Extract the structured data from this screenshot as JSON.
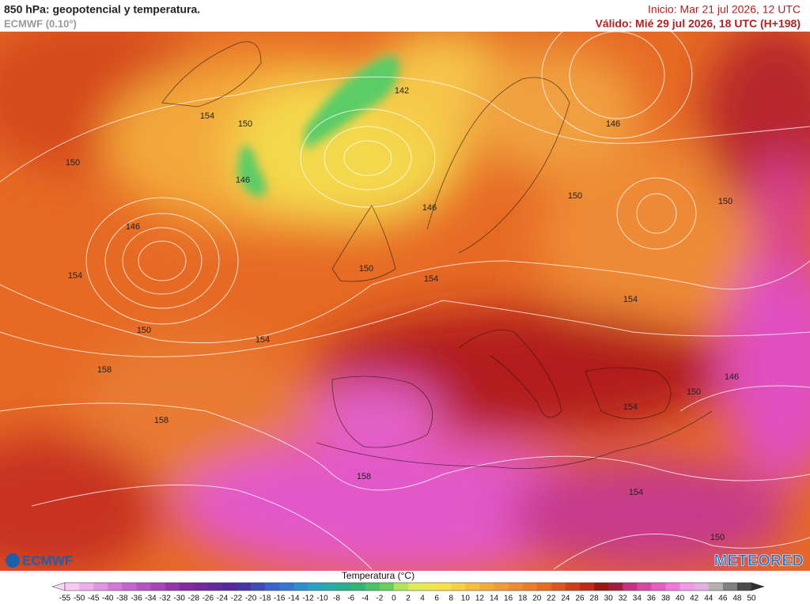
{
  "header": {
    "title": "850 hPa: geopotencial y temperatura.",
    "model": "ECMWF (0.10°)",
    "init": "Inicio: Mar 21 jul 2026, 12 UTC",
    "valid": "Válido: Mié 29 jul 2026, 18 UTC (H+198)"
  },
  "contour_labels": [
    154,
    150,
    142,
    150,
    146,
    146,
    146,
    150,
    150,
    146,
    154,
    150,
    154,
    154,
    150,
    154,
    158,
    146,
    150,
    154,
    158,
    158,
    154,
    150
  ],
  "logos": {
    "left": "ECMWF",
    "right": "METEORED"
  },
  "colorbar": {
    "title": "Temperatura (°C)",
    "ticks": [
      -55,
      -50,
      -45,
      -40,
      -38,
      -36,
      -34,
      -32,
      -30,
      -28,
      -26,
      -24,
      -22,
      -20,
      -18,
      -16,
      -14,
      -12,
      -10,
      -8,
      -6,
      -4,
      -2,
      0,
      2,
      4,
      6,
      8,
      10,
      12,
      14,
      16,
      18,
      20,
      22,
      24,
      26,
      28,
      30,
      32,
      34,
      36,
      38,
      40,
      42,
      44,
      46,
      48,
      50
    ]
  }
}
